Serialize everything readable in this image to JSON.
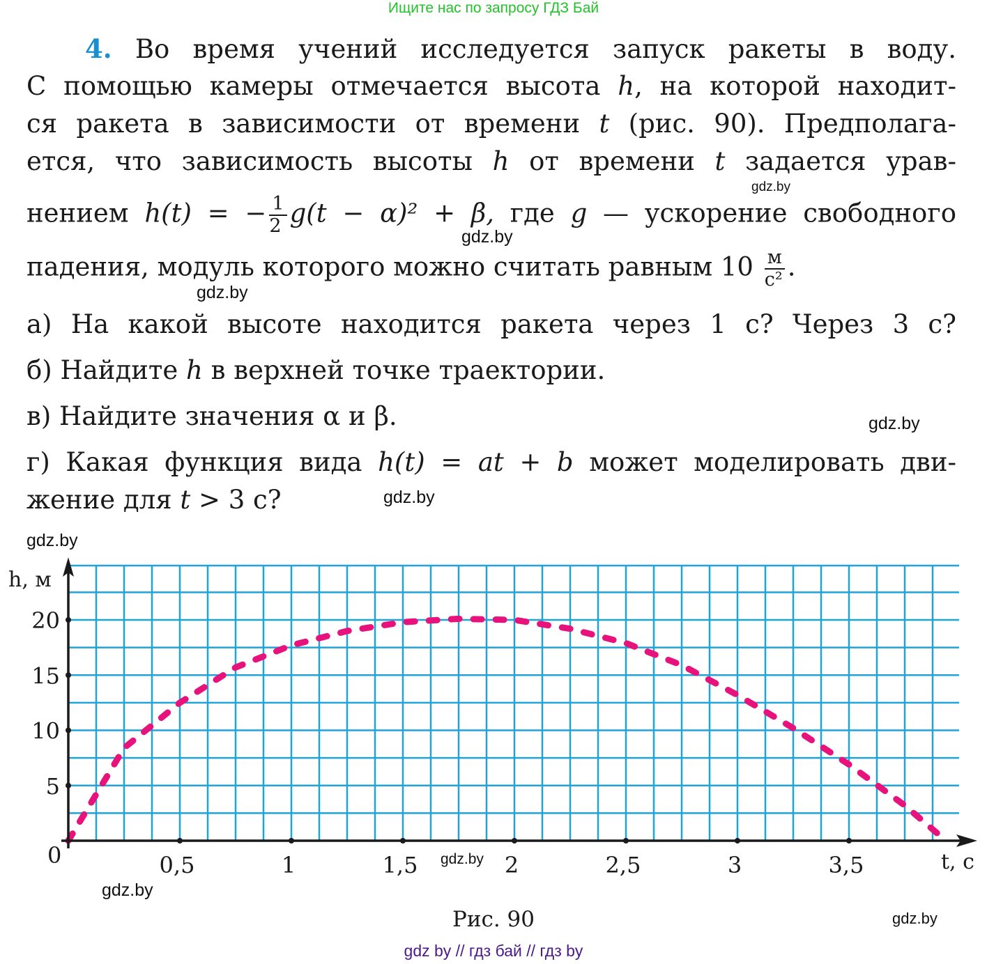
{
  "banner": "Ищите нас по запросу ГДЗ Бай",
  "problem": {
    "number": "4.",
    "line1": "Во время учений исследуется запуск ракеты в воду.",
    "line2a": "С помощью камеры отмечается высота ",
    "line2b": "h",
    "line2c": ", на которой находит-",
    "line3a": "ся ракета в зависимости от времени ",
    "line3b": "t",
    "line3c": " (рис. 90). Предполага-",
    "line4a": "ется, что зависимость высоты ",
    "line4b": "h",
    "line4c": " от времени ",
    "line4d": "t",
    "line4e": " задается урав-",
    "line5a": "нением ",
    "line5_formula_lhs": "h(t) = −",
    "line5_frac_num": "1",
    "line5_frac_den": "2",
    "line5_formula_rhs": "g(t − α)² + β,",
    "line5b": " где ",
    "line5c": "g",
    "line5d": " — ускорение свободного",
    "line6a": "падения, модуль которого можно считать равным 10 ",
    "line6_frac_num": "м",
    "line6_frac_den": "с²",
    "line6b": "."
  },
  "questions": [
    {
      "label": "а)",
      "text": "На какой высоте находится ракета через 1 с? Через 3 с?"
    },
    {
      "label": "б)",
      "text_a": "Найдите ",
      "var": "h",
      "text_b": " в верхней точке траектории."
    },
    {
      "label": "в)",
      "text": "Найдите значения α и β."
    },
    {
      "label": "г)",
      "text_a": "Какая функция вида ",
      "formula": "h(t) = at + b",
      "text_b": " может моделировать дви-",
      "text_c": "жение для ",
      "var": "t",
      "text_d": " > 3 с?"
    }
  ],
  "watermarks": [
    "gdz.by",
    "gdz.by",
    "gdz.by",
    "gdz.by",
    "gdz.by",
    "gdz.by",
    "gdz.by",
    "gdz.by",
    "gdz.by"
  ],
  "caption": "Рис. 90",
  "footer": "gdz by  //  гдз бай  //  гдз by",
  "colors": {
    "grid": "#1fa3d9",
    "curve": "#e8127c",
    "axis": "#1a1a1a",
    "banner": "#22c22a",
    "number": "#1a8fd0",
    "footer": "#4a1a8a"
  },
  "chart_data": {
    "type": "line",
    "title": "Рис. 90",
    "xlabel": "t, с",
    "ylabel": "h, м",
    "xlim": [
      0,
      4.0
    ],
    "ylim": [
      0,
      25
    ],
    "grid": true,
    "x_ticks": [
      "0",
      "0,5",
      "1",
      "1,5",
      "2",
      "2,5",
      "3",
      "3,5"
    ],
    "y_ticks": [
      "5",
      "10",
      "15",
      "20"
    ],
    "origin_label": "0",
    "series": [
      {
        "name": "h(t)",
        "style": "dashed",
        "x": [
          0,
          0.25,
          0.5,
          0.75,
          1.0,
          1.25,
          1.5,
          1.75,
          2.0,
          2.25,
          2.5,
          2.75,
          3.0,
          3.25,
          3.5,
          3.75,
          3.9
        ],
        "values": [
          0,
          8.4,
          12.5,
          15.7,
          17.7,
          19.0,
          19.8,
          20.1,
          20.0,
          19.2,
          17.9,
          15.9,
          13.2,
          10.2,
          6.9,
          3.2,
          0.6
        ]
      }
    ]
  }
}
